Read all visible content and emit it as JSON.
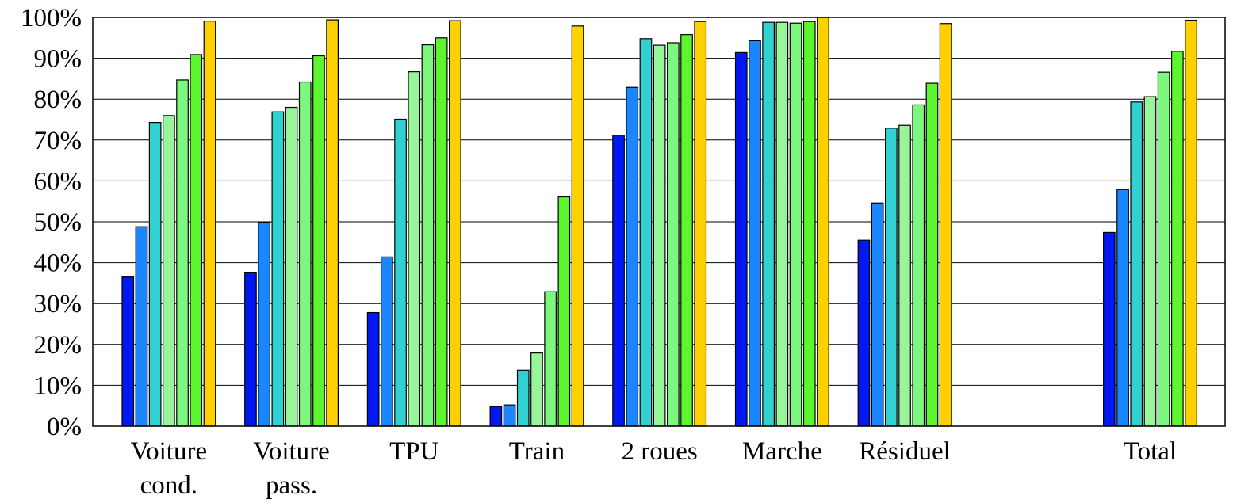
{
  "chart_data": {
    "type": "bar",
    "title": "",
    "xlabel": "",
    "ylabel": "",
    "ylim": [
      0,
      100
    ],
    "yticks": [
      "0%",
      "10%",
      "20%",
      "30%",
      "40%",
      "50%",
      "60%",
      "70%",
      "80%",
      "90%",
      "100%"
    ],
    "grid": true,
    "categories": [
      [
        "Voiture",
        "cond."
      ],
      [
        "Voiture",
        "pass."
      ],
      [
        "TPU"
      ],
      [
        "Train"
      ],
      [
        "2 roues"
      ],
      [
        "Marche"
      ],
      [
        "Résiduel"
      ],
      [
        ""
      ],
      [
        "Total"
      ]
    ],
    "series_colors": [
      "#0019f0",
      "#1a86ff",
      "#31d1d1",
      "#99f599",
      "#7df77d",
      "#5df52d",
      "#ffd000"
    ],
    "series": [
      {
        "values": [
          36.5,
          37.5,
          27.8,
          4.8,
          71.2,
          91.4,
          45.5,
          null,
          47.4
        ]
      },
      {
        "values": [
          48.8,
          49.8,
          41.4,
          5.2,
          82.9,
          94.3,
          54.6,
          null,
          57.9
        ]
      },
      {
        "values": [
          74.3,
          76.9,
          75.1,
          13.7,
          94.8,
          98.8,
          72.9,
          null,
          79.3
        ]
      },
      {
        "values": [
          76.0,
          78.0,
          86.7,
          17.9,
          93.2,
          98.8,
          73.6,
          null,
          80.6
        ]
      },
      {
        "values": [
          84.7,
          84.2,
          93.3,
          32.9,
          93.8,
          98.6,
          78.6,
          null,
          86.6
        ]
      },
      {
        "values": [
          90.9,
          90.6,
          95.0,
          56.1,
          95.8,
          99.0,
          83.9,
          null,
          91.7
        ]
      },
      {
        "values": [
          99.1,
          99.4,
          99.2,
          97.9,
          99.0,
          100.0,
          98.5,
          null,
          99.3
        ]
      }
    ]
  }
}
